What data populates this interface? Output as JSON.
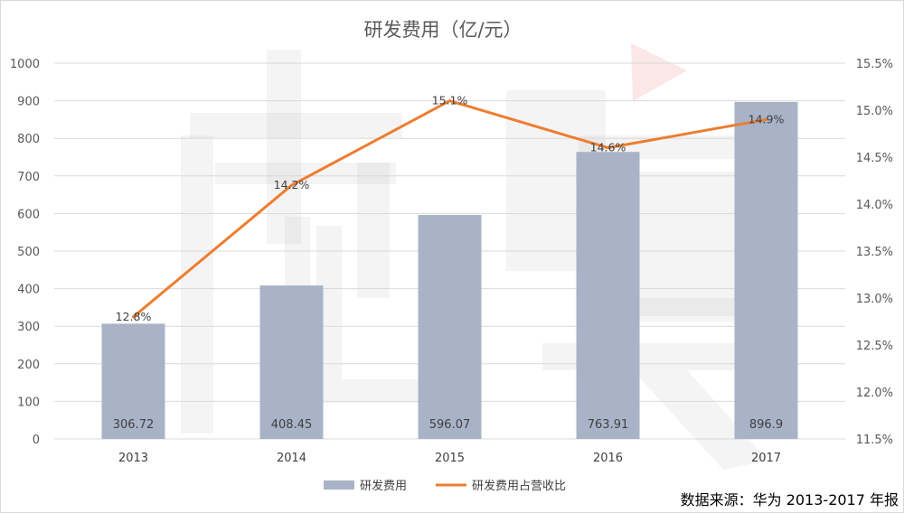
{
  "chart_data": {
    "type": "bar",
    "title": "研发费用（亿/元）",
    "categories": [
      "2013",
      "2014",
      "2015",
      "2016",
      "2017"
    ],
    "series": [
      {
        "name": "研发费用",
        "type": "bar",
        "axis": "left",
        "values": [
          306.72,
          408.45,
          596.07,
          763.91,
          896.9
        ],
        "labels": [
          "306.72",
          "408.45",
          "596.07",
          "763.91",
          "896.9"
        ],
        "color": "#a9b3c7"
      },
      {
        "name": "研发费用占营收比",
        "type": "line",
        "axis": "right",
        "values": [
          12.8,
          14.2,
          15.1,
          14.6,
          14.9
        ],
        "labels": [
          "12.8%",
          "14.2%",
          "15.1%",
          "14.6%",
          "14.9%"
        ],
        "color": "#ed7d31"
      }
    ],
    "y_left": {
      "ylim": [
        0,
        1000
      ],
      "ticks": [
        0,
        100,
        200,
        300,
        400,
        500,
        600,
        700,
        800,
        900,
        1000
      ],
      "tick_labels": [
        "0",
        "100",
        "200",
        "300",
        "400",
        "500",
        "600",
        "700",
        "800",
        "900",
        "1000"
      ]
    },
    "y_right": {
      "ylim": [
        11.5,
        15.5
      ],
      "ticks": [
        11.5,
        12.0,
        12.5,
        13.0,
        13.5,
        14.0,
        14.5,
        15.0,
        15.5
      ],
      "tick_labels": [
        "11.5%",
        "12.0%",
        "12.5%",
        "13.0%",
        "13.5%",
        "14.0%",
        "14.5%",
        "15.0%",
        "15.5%"
      ]
    },
    "grid": true,
    "legend_position": "bottom-center"
  },
  "source_note": "数据来源：华为 2013-2017 年报"
}
